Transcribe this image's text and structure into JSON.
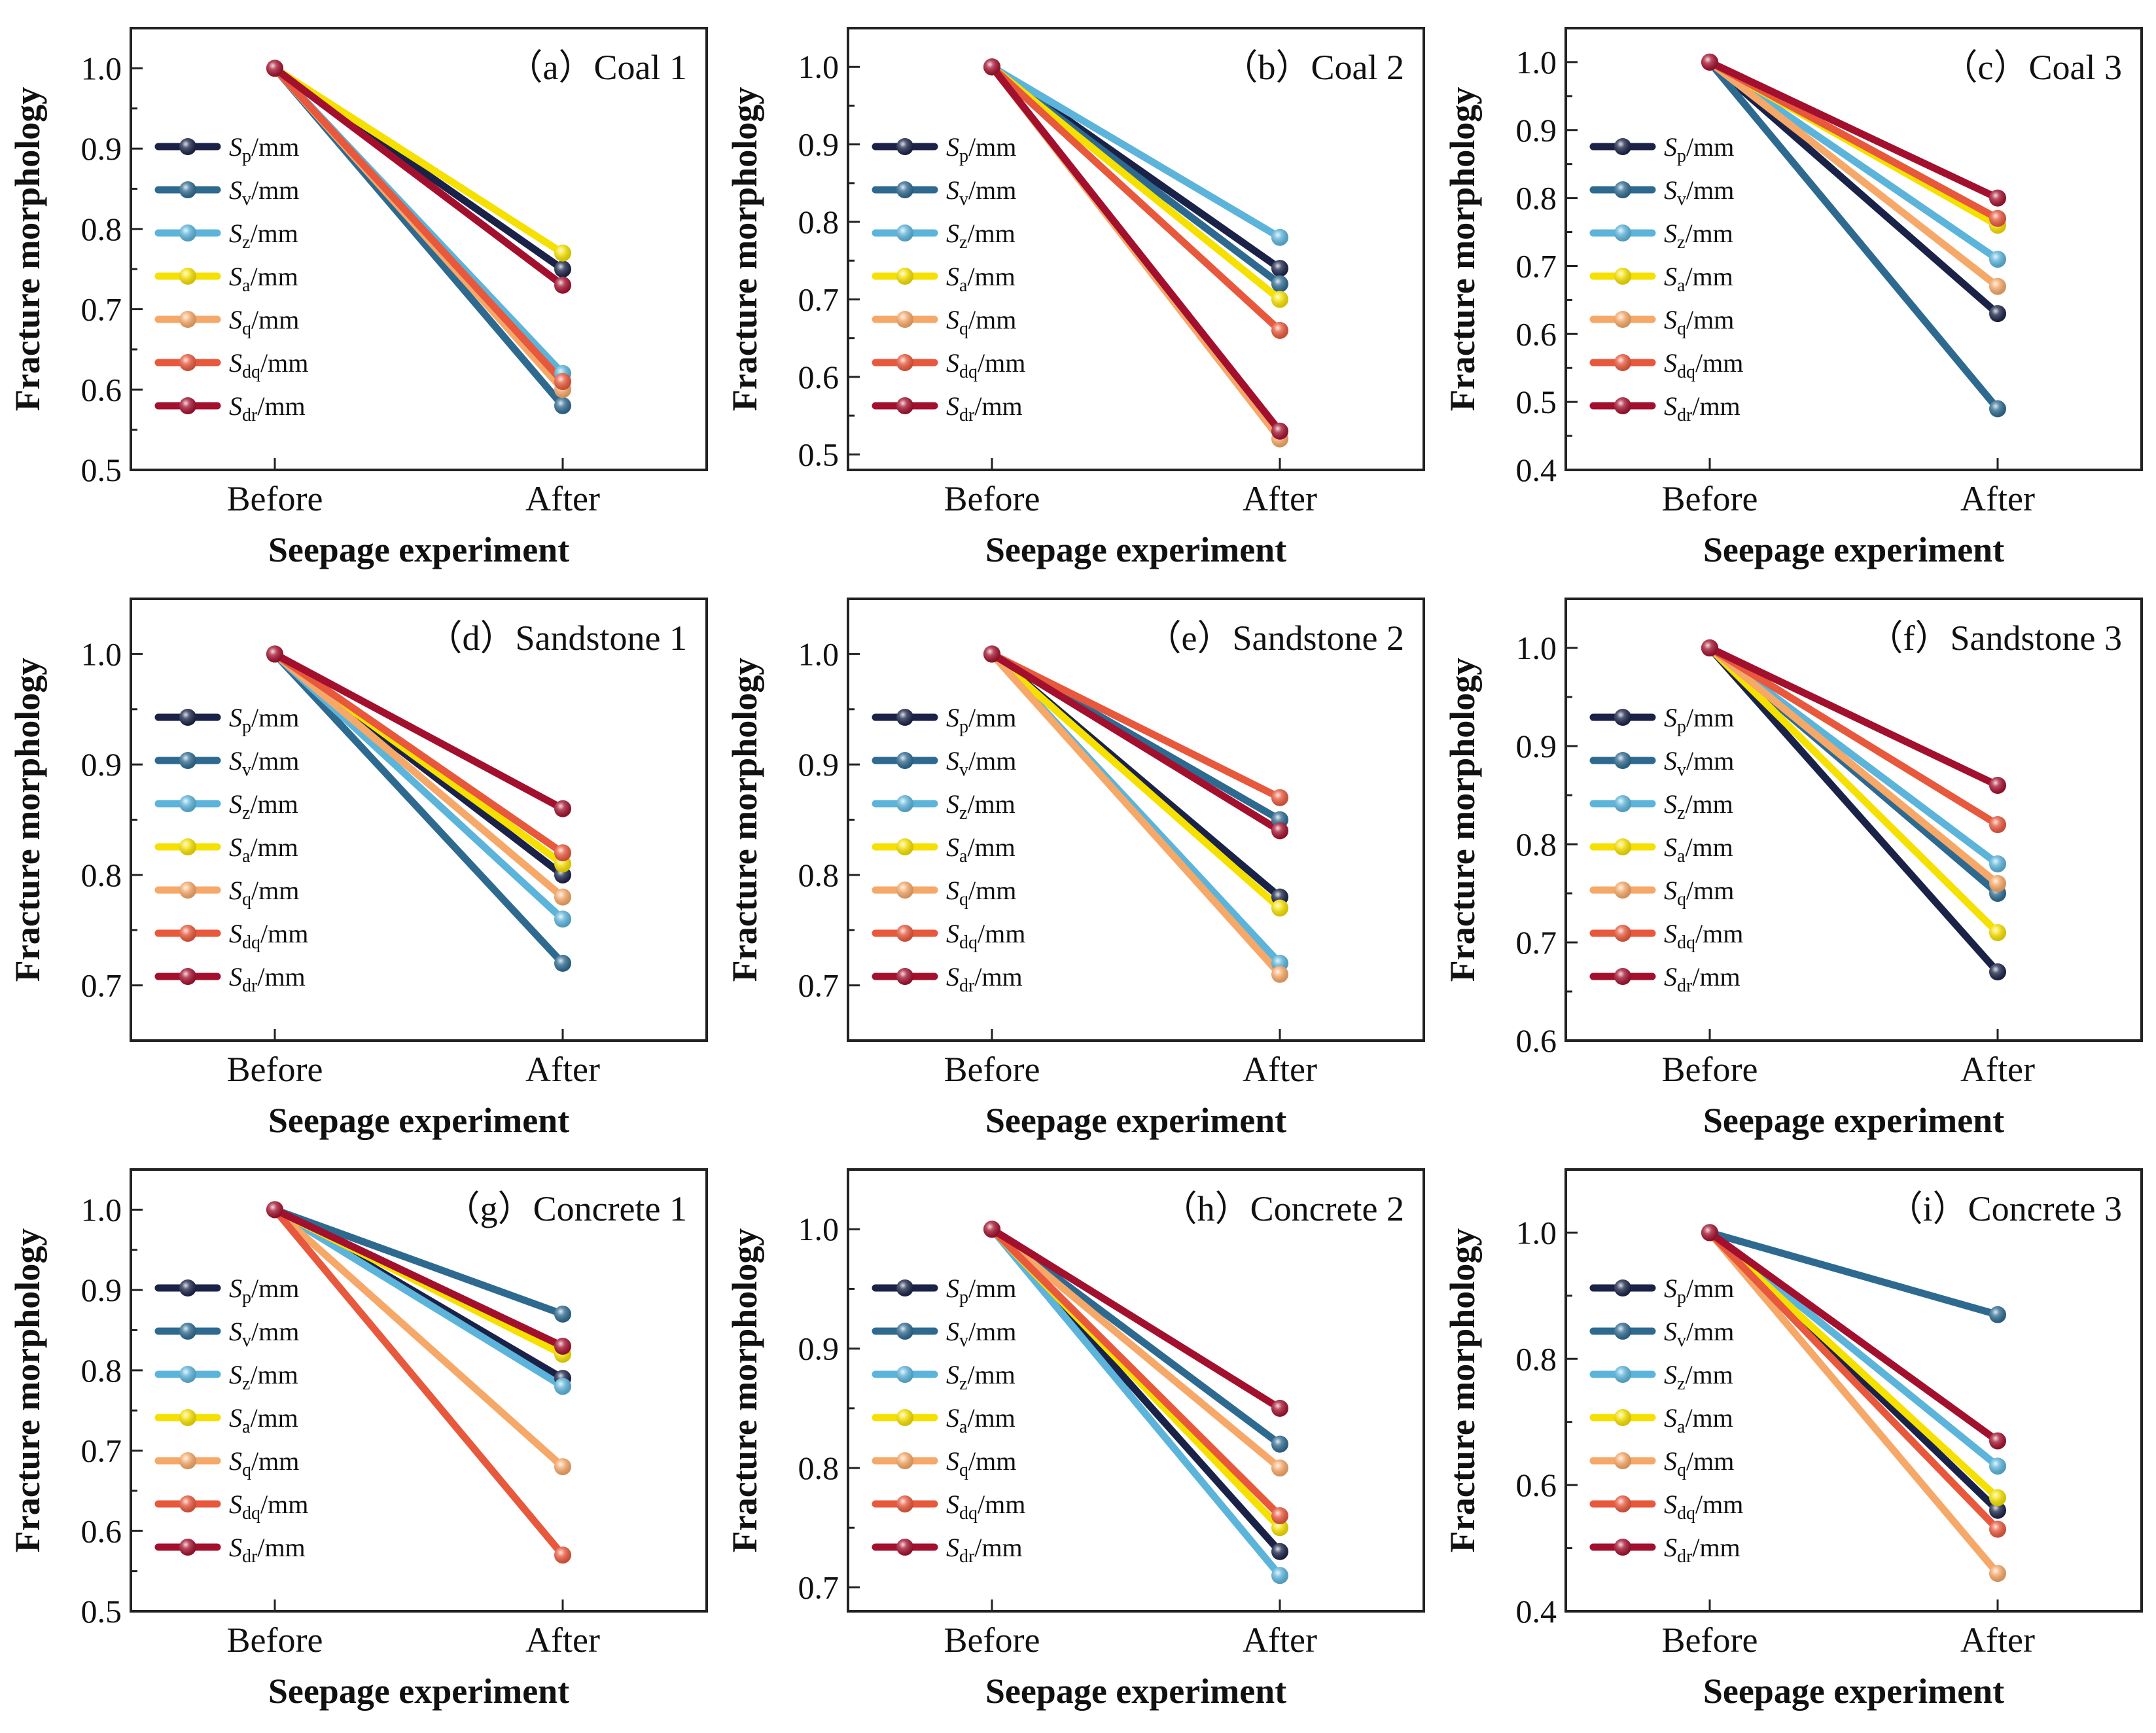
{
  "figure": {
    "xlabel": "Seepage experiment",
    "ylabel": "Fracture morphology",
    "categories": [
      "Before",
      "After"
    ],
    "legend": [
      {
        "key": "Sp",
        "symbol": "S",
        "sub": "p",
        "unit": "/mm",
        "color": "#1a2347"
      },
      {
        "key": "Sv",
        "symbol": "S",
        "sub": "v",
        "unit": "/mm",
        "color": "#2e6a90"
      },
      {
        "key": "Sz",
        "symbol": "S",
        "sub": "z",
        "unit": "/mm",
        "color": "#5cb4da"
      },
      {
        "key": "Sa",
        "symbol": "S",
        "sub": "a",
        "unit": "/mm",
        "color": "#f5e000"
      },
      {
        "key": "Sq",
        "symbol": "S",
        "sub": "q",
        "unit": "/mm",
        "color": "#f6a868"
      },
      {
        "key": "Sdq",
        "symbol": "S",
        "sub": "dq",
        "unit": "/mm",
        "color": "#e8583c"
      },
      {
        "key": "Sdr",
        "symbol": "S",
        "sub": "dr",
        "unit": "/mm",
        "color": "#a3102e"
      }
    ]
  },
  "chart_data": [
    {
      "type": "line",
      "title": "（a）Coal 1",
      "xlabel": "Seepage experiment",
      "ylabel": "Fracture morphology",
      "categories": [
        "Before",
        "After"
      ],
      "ylim": [
        0.5,
        1.05
      ],
      "yticks": [
        0.5,
        0.6,
        0.7,
        0.8,
        0.9,
        1.0
      ],
      "yticklabels": [
        "0.5",
        "0.6",
        "0.7",
        "0.8",
        "0.9",
        "1.0"
      ],
      "series": [
        {
          "name": "Sp/mm",
          "values": [
            1.0,
            0.75
          ]
        },
        {
          "name": "Sv/mm",
          "values": [
            1.0,
            0.58
          ]
        },
        {
          "name": "Sz/mm",
          "values": [
            1.0,
            0.62
          ]
        },
        {
          "name": "Sa/mm",
          "values": [
            1.0,
            0.77
          ]
        },
        {
          "name": "Sq/mm",
          "values": [
            1.0,
            0.6
          ]
        },
        {
          "name": "Sdq/mm",
          "values": [
            1.0,
            0.61
          ]
        },
        {
          "name": "Sdr/mm",
          "values": [
            1.0,
            0.73
          ]
        }
      ]
    },
    {
      "type": "line",
      "title": "（b）Coal 2",
      "xlabel": "Seepage experiment",
      "ylabel": "Fracture morphology",
      "categories": [
        "Before",
        "After"
      ],
      "ylim": [
        0.48,
        1.05
      ],
      "yticks": [
        0.5,
        0.6,
        0.7,
        0.8,
        0.9,
        1.0
      ],
      "yticklabels": [
        "0.5",
        "0.6",
        "0.7",
        "0.8",
        "0.9",
        "1.0"
      ],
      "series": [
        {
          "name": "Sp/mm",
          "values": [
            1.0,
            0.74
          ]
        },
        {
          "name": "Sv/mm",
          "values": [
            1.0,
            0.72
          ]
        },
        {
          "name": "Sz/mm",
          "values": [
            1.0,
            0.78
          ]
        },
        {
          "name": "Sa/mm",
          "values": [
            1.0,
            0.7
          ]
        },
        {
          "name": "Sq/mm",
          "values": [
            1.0,
            0.52
          ]
        },
        {
          "name": "Sdq/mm",
          "values": [
            1.0,
            0.66
          ]
        },
        {
          "name": "Sdr/mm",
          "values": [
            1.0,
            0.53
          ]
        }
      ]
    },
    {
      "type": "line",
      "title": "（c）Coal 3",
      "xlabel": "Seepage experiment",
      "ylabel": "Fracture morphology",
      "categories": [
        "Before",
        "After"
      ],
      "ylim": [
        0.4,
        1.05
      ],
      "yticks": [
        0.4,
        0.5,
        0.6,
        0.7,
        0.8,
        0.9,
        1.0
      ],
      "yticklabels": [
        "0.4",
        "0.5",
        "0.6",
        "0.7",
        "0.8",
        "0.9",
        "1.0"
      ],
      "series": [
        {
          "name": "Sp/mm",
          "values": [
            1.0,
            0.63
          ]
        },
        {
          "name": "Sv/mm",
          "values": [
            1.0,
            0.49
          ]
        },
        {
          "name": "Sz/mm",
          "values": [
            1.0,
            0.71
          ]
        },
        {
          "name": "Sa/mm",
          "values": [
            1.0,
            0.76
          ]
        },
        {
          "name": "Sq/mm",
          "values": [
            1.0,
            0.67
          ]
        },
        {
          "name": "Sdq/mm",
          "values": [
            1.0,
            0.77
          ]
        },
        {
          "name": "Sdr/mm",
          "values": [
            1.0,
            0.8
          ]
        }
      ]
    },
    {
      "type": "line",
      "title": "（d）Sandstone 1",
      "xlabel": "Seepage experiment",
      "ylabel": "Fracture morphology",
      "categories": [
        "Before",
        "After"
      ],
      "ylim": [
        0.65,
        1.05
      ],
      "yticks": [
        0.7,
        0.8,
        0.9,
        1.0
      ],
      "yticklabels": [
        "0.7",
        "0.8",
        "0.9",
        "1.0"
      ],
      "series": [
        {
          "name": "Sp/mm",
          "values": [
            1.0,
            0.8
          ]
        },
        {
          "name": "Sv/mm",
          "values": [
            1.0,
            0.72
          ]
        },
        {
          "name": "Sz/mm",
          "values": [
            1.0,
            0.76
          ]
        },
        {
          "name": "Sa/mm",
          "values": [
            1.0,
            0.81
          ]
        },
        {
          "name": "Sq/mm",
          "values": [
            1.0,
            0.78
          ]
        },
        {
          "name": "Sdq/mm",
          "values": [
            1.0,
            0.82
          ]
        },
        {
          "name": "Sdr/mm",
          "values": [
            1.0,
            0.86
          ]
        }
      ]
    },
    {
      "type": "line",
      "title": "（e）Sandstone 2",
      "xlabel": "Seepage experiment",
      "ylabel": "Fracture morphology",
      "categories": [
        "Before",
        "After"
      ],
      "ylim": [
        0.65,
        1.05
      ],
      "yticks": [
        0.7,
        0.8,
        0.9,
        1.0
      ],
      "yticklabels": [
        "0.7",
        "0.8",
        "0.9",
        "1.0"
      ],
      "series": [
        {
          "name": "Sp/mm",
          "values": [
            1.0,
            0.78
          ]
        },
        {
          "name": "Sv/mm",
          "values": [
            1.0,
            0.85
          ]
        },
        {
          "name": "Sz/mm",
          "values": [
            1.0,
            0.72
          ]
        },
        {
          "name": "Sa/mm",
          "values": [
            1.0,
            0.77
          ]
        },
        {
          "name": "Sq/mm",
          "values": [
            1.0,
            0.71
          ]
        },
        {
          "name": "Sdq/mm",
          "values": [
            1.0,
            0.87
          ]
        },
        {
          "name": "Sdr/mm",
          "values": [
            1.0,
            0.84
          ]
        }
      ]
    },
    {
      "type": "line",
      "title": "（f）Sandstone 3",
      "xlabel": "Seepage experiment",
      "ylabel": "Fracture morphology",
      "categories": [
        "Before",
        "After"
      ],
      "ylim": [
        0.6,
        1.05
      ],
      "yticks": [
        0.6,
        0.7,
        0.8,
        0.9,
        1.0
      ],
      "yticklabels": [
        "0.6",
        "0.7",
        "0.8",
        "0.9",
        "1.0"
      ],
      "series": [
        {
          "name": "Sp/mm",
          "values": [
            1.0,
            0.67
          ]
        },
        {
          "name": "Sv/mm",
          "values": [
            1.0,
            0.75
          ]
        },
        {
          "name": "Sz/mm",
          "values": [
            1.0,
            0.78
          ]
        },
        {
          "name": "Sa/mm",
          "values": [
            1.0,
            0.71
          ]
        },
        {
          "name": "Sq/mm",
          "values": [
            1.0,
            0.76
          ]
        },
        {
          "name": "Sdq/mm",
          "values": [
            1.0,
            0.82
          ]
        },
        {
          "name": "Sdr/mm",
          "values": [
            1.0,
            0.86
          ]
        }
      ]
    },
    {
      "type": "line",
      "title": "（g）Concrete 1",
      "xlabel": "Seepage experiment",
      "ylabel": "Fracture morphology",
      "categories": [
        "Before",
        "After"
      ],
      "ylim": [
        0.5,
        1.05
      ],
      "yticks": [
        0.5,
        0.6,
        0.7,
        0.8,
        0.9,
        1.0
      ],
      "yticklabels": [
        "0.5",
        "0.6",
        "0.7",
        "0.8",
        "0.9",
        "1.0"
      ],
      "series": [
        {
          "name": "Sp/mm",
          "values": [
            1.0,
            0.79
          ]
        },
        {
          "name": "Sv/mm",
          "values": [
            1.0,
            0.87
          ]
        },
        {
          "name": "Sz/mm",
          "values": [
            1.0,
            0.78
          ]
        },
        {
          "name": "Sa/mm",
          "values": [
            1.0,
            0.82
          ]
        },
        {
          "name": "Sq/mm",
          "values": [
            1.0,
            0.68
          ]
        },
        {
          "name": "Sdq/mm",
          "values": [
            1.0,
            0.57
          ]
        },
        {
          "name": "Sdr/mm",
          "values": [
            1.0,
            0.83
          ]
        }
      ]
    },
    {
      "type": "line",
      "title": "（h）Concrete 2",
      "xlabel": "Seepage experiment",
      "ylabel": "Fracture morphology",
      "categories": [
        "Before",
        "After"
      ],
      "ylim": [
        0.68,
        1.05
      ],
      "yticks": [
        0.7,
        0.8,
        0.9,
        1.0
      ],
      "yticklabels": [
        "0.7",
        "0.8",
        "0.9",
        "1.0"
      ],
      "series": [
        {
          "name": "Sp/mm",
          "values": [
            1.0,
            0.73
          ]
        },
        {
          "name": "Sv/mm",
          "values": [
            1.0,
            0.82
          ]
        },
        {
          "name": "Sz/mm",
          "values": [
            1.0,
            0.71
          ]
        },
        {
          "name": "Sa/mm",
          "values": [
            1.0,
            0.75
          ]
        },
        {
          "name": "Sq/mm",
          "values": [
            1.0,
            0.8
          ]
        },
        {
          "name": "Sdq/mm",
          "values": [
            1.0,
            0.76
          ]
        },
        {
          "name": "Sdr/mm",
          "values": [
            1.0,
            0.85
          ]
        }
      ]
    },
    {
      "type": "line",
      "title": "（i）Concrete 3",
      "xlabel": "Seepage experiment",
      "ylabel": "Fracture morphology",
      "categories": [
        "Before",
        "After"
      ],
      "ylim": [
        0.4,
        1.1
      ],
      "yticks": [
        0.4,
        0.6,
        0.8,
        1.0
      ],
      "yticklabels": [
        "0.4",
        "0.6",
        "0.8",
        "1.0"
      ],
      "series": [
        {
          "name": "Sp/mm",
          "values": [
            1.0,
            0.56
          ]
        },
        {
          "name": "Sv/mm",
          "values": [
            1.0,
            0.87
          ]
        },
        {
          "name": "Sz/mm",
          "values": [
            1.0,
            0.63
          ]
        },
        {
          "name": "Sa/mm",
          "values": [
            1.0,
            0.58
          ]
        },
        {
          "name": "Sq/mm",
          "values": [
            1.0,
            0.46
          ]
        },
        {
          "name": "Sdq/mm",
          "values": [
            1.0,
            0.53
          ]
        },
        {
          "name": "Sdr/mm",
          "values": [
            1.0,
            0.67
          ]
        }
      ]
    }
  ]
}
